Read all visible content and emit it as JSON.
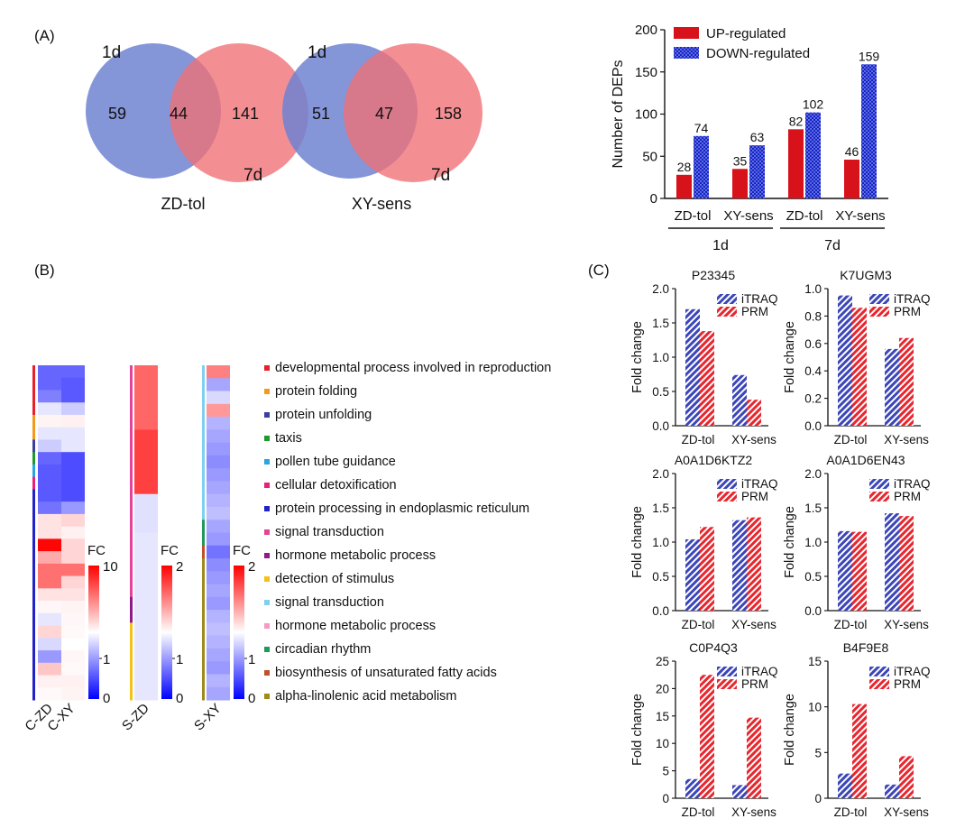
{
  "panel_labels": {
    "a": "(A)",
    "b": "(B)",
    "c": "(C)"
  },
  "venns": [
    {
      "name": "ZD-tol",
      "set1_label": "1d",
      "set2_label": "7d",
      "only1": "59",
      "both": "44",
      "only2": "141",
      "color1": "#6f83d1",
      "color2": "#ef6f74"
    },
    {
      "name": "XY-sens",
      "set1_label": "1d",
      "set2_label": "7d",
      "only1": "51",
      "both": "47",
      "only2": "158",
      "color1": "#6f83d1",
      "color2": "#ef6f74"
    }
  ],
  "heatmap": {
    "column_labels": [
      "C-ZD",
      "C-XY",
      "S-ZD",
      "S-XY"
    ],
    "legend_title": "FC",
    "scale_ticks": [
      [
        "10",
        "1",
        "0"
      ],
      [
        "2",
        "1",
        "0"
      ],
      [
        "2",
        "1",
        "0"
      ]
    ],
    "colors": {
      "low": "#0000ff",
      "mid": "#ffffff",
      "high": "#ff0000"
    },
    "cz": [
      0.4,
      0.4,
      0.5,
      0.9,
      1.4,
      0.9,
      0.8,
      0.4,
      0.35,
      0.35,
      0.35,
      0.45,
      2.0,
      2.0,
      9.8,
      4.0,
      6.0,
      6.0,
      2.0,
      1.3,
      0.9,
      2.5,
      0.85,
      0.6,
      3.0,
      1.5,
      1.2
    ],
    "cx": [
      0.4,
      0.35,
      0.35,
      0.8,
      1.5,
      0.9,
      0.9,
      0.3,
      0.3,
      0.3,
      0.3,
      0.6,
      2.5,
      1.5,
      2.5,
      2.5,
      6.0,
      2.5,
      2.0,
      1.4,
      1.3,
      1.2,
      1.0,
      1.3,
      1.2,
      1.5,
      1.4
    ],
    "sz": [
      1.6,
      1.6,
      1.6,
      1.6,
      1.6,
      1.75,
      1.75,
      1.75,
      1.75,
      1.75,
      0.88,
      0.88,
      0.88,
      0.9,
      0.9,
      0.9,
      0.9,
      0.9,
      0.9,
      0.9,
      0.9,
      0.9,
      0.9,
      0.9,
      0.9,
      0.9
    ],
    "sx": [
      1.5,
      0.65,
      0.85,
      1.4,
      0.7,
      0.65,
      0.6,
      0.55,
      0.6,
      0.65,
      0.7,
      0.75,
      0.65,
      0.6,
      0.45,
      0.55,
      0.6,
      0.65,
      0.6,
      0.7,
      0.75,
      0.7,
      0.65,
      0.6,
      0.7,
      0.65
    ]
  },
  "go_terms": [
    {
      "label": "developmental process involved in reproduction",
      "color": "#e8202a"
    },
    {
      "label": "protein folding",
      "color": "#f39a1e"
    },
    {
      "label": "protein unfolding",
      "color": "#3b3f9e"
    },
    {
      "label": "taxis",
      "color": "#1f9a2e"
    },
    {
      "label": "pollen tube guidance",
      "color": "#27a6e0"
    },
    {
      "label": "cellular detoxification",
      "color": "#e8207a"
    },
    {
      "label": "protein processing in endoplasmic reticulum",
      "color": "#2322c8"
    },
    {
      "label": "signal transduction",
      "color": "#e54397"
    },
    {
      "label": "hormone metabolic process",
      "color": "#8e1a8e"
    },
    {
      "label": "detection of stimulus",
      "color": "#f3c21a"
    },
    {
      "label": "signal transduction",
      "color": "#7fd0ef"
    },
    {
      "label": "hormone metabolic process",
      "color": "#f29ac8"
    },
    {
      "label": "circadian rhythm",
      "color": "#1f9a5a"
    },
    {
      "label": "biosynthesis of unsaturated fatty acids",
      "color": "#c0502a"
    },
    {
      "label": "alpha-linolenic acid metabolism",
      "color": "#a08a1a"
    }
  ],
  "chart_data": [
    {
      "type": "bar",
      "title": "",
      "ylabel": "Number of DEPs",
      "xlabel": "",
      "ylim": [
        0,
        200
      ],
      "yticks": [
        "0",
        "50",
        "100",
        "150",
        "200"
      ],
      "categories": [
        "ZD-tol",
        "XY-sens",
        "ZD-tol",
        "XY-sens"
      ],
      "groups": [
        "1d",
        "7d"
      ],
      "series": [
        {
          "name": "UP-regulated",
          "values": [
            28,
            35,
            82,
            46
          ],
          "color": "#d7121b"
        },
        {
          "name": "DOWN-regulated",
          "values": [
            74,
            63,
            102,
            159
          ],
          "color": "#1424c8"
        }
      ]
    },
    {
      "type": "bar",
      "title": "P23345",
      "ylabel": "Fold change",
      "categories": [
        "ZD-tol",
        "XY-sens"
      ],
      "ylim": [
        0,
        2.0
      ],
      "yticks": [
        "0.0",
        "0.5",
        "1.0",
        "1.5",
        "2.0"
      ],
      "series": [
        {
          "name": "iTRAQ",
          "values": [
            1.7,
            0.74
          ]
        },
        {
          "name": "PRM",
          "values": [
            1.38,
            0.38
          ]
        }
      ]
    },
    {
      "type": "bar",
      "title": "K7UGM3",
      "ylabel": "Fold change",
      "categories": [
        "ZD-tol",
        "XY-sens"
      ],
      "ylim": [
        0,
        1.0
      ],
      "yticks": [
        "0.0",
        "0.2",
        "0.4",
        "0.6",
        "0.8",
        "1.0"
      ],
      "series": [
        {
          "name": "iTRAQ",
          "values": [
            0.95,
            0.56
          ]
        },
        {
          "name": "PRM",
          "values": [
            0.86,
            0.64
          ]
        }
      ]
    },
    {
      "type": "bar",
      "title": "A0A1D6KTZ2",
      "ylabel": "Fold change",
      "categories": [
        "ZD-tol",
        "XY-sens"
      ],
      "ylim": [
        0,
        2.0
      ],
      "yticks": [
        "0.0",
        "0.5",
        "1.0",
        "1.5",
        "2.0"
      ],
      "series": [
        {
          "name": "iTRAQ",
          "values": [
            1.04,
            1.32
          ]
        },
        {
          "name": "PRM",
          "values": [
            1.22,
            1.36
          ]
        }
      ]
    },
    {
      "type": "bar",
      "title": "A0A1D6EN43",
      "ylabel": "Fold change",
      "categories": [
        "ZD-tol",
        "XY-sens"
      ],
      "ylim": [
        0,
        2.0
      ],
      "yticks": [
        "0.0",
        "0.5",
        "1.0",
        "1.5",
        "2.0"
      ],
      "series": [
        {
          "name": "iTRAQ",
          "values": [
            1.16,
            1.42
          ]
        },
        {
          "name": "PRM",
          "values": [
            1.15,
            1.38
          ]
        }
      ]
    },
    {
      "type": "bar",
      "title": "C0P4Q3",
      "ylabel": "Fold change",
      "categories": [
        "ZD-tol",
        "XY-sens"
      ],
      "ylim": [
        0,
        25
      ],
      "yticks": [
        "0",
        "5",
        "10",
        "15",
        "20",
        "25"
      ],
      "series": [
        {
          "name": "iTRAQ",
          "values": [
            3.5,
            2.4
          ]
        },
        {
          "name": "PRM",
          "values": [
            22.5,
            14.7
          ]
        }
      ]
    },
    {
      "type": "bar",
      "title": "B4F9E8",
      "ylabel": "Fold change",
      "categories": [
        "ZD-tol",
        "XY-sens"
      ],
      "ylim": [
        0,
        15
      ],
      "yticks": [
        "0",
        "5",
        "10",
        "15"
      ],
      "series": [
        {
          "name": "iTRAQ",
          "values": [
            2.7,
            1.5
          ]
        },
        {
          "name": "PRM",
          "values": [
            10.3,
            4.6
          ]
        }
      ]
    }
  ]
}
